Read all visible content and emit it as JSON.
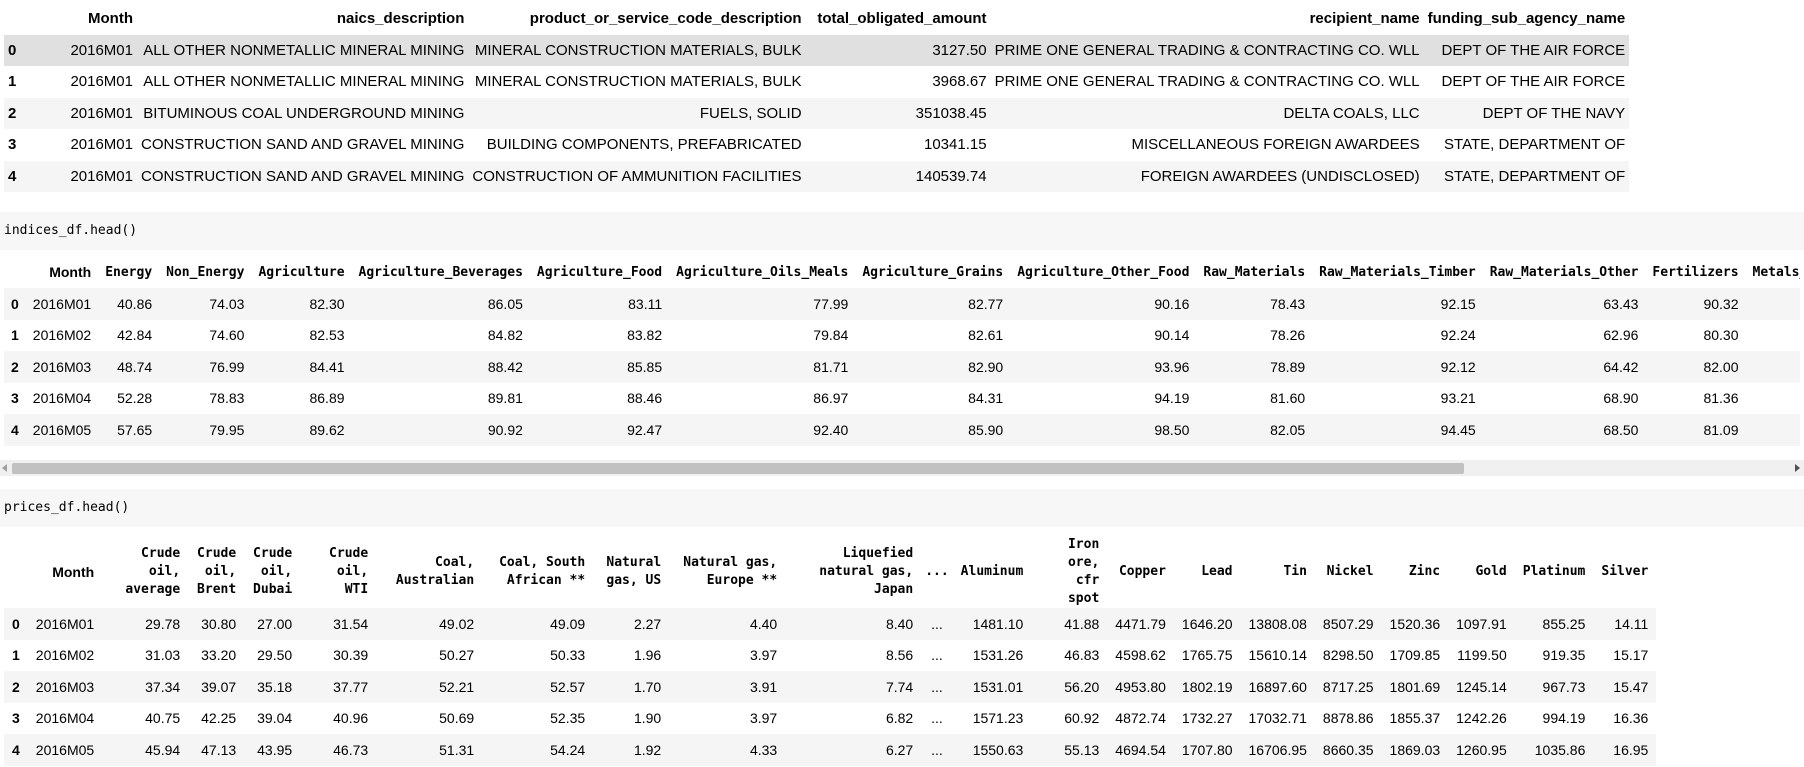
{
  "t1": {
    "columns": [
      "",
      "Month",
      "naics_description",
      "product_or_service_code_description",
      "total_obligated_amount",
      "recipient_name",
      "funding_sub_agency_name"
    ],
    "rows": [
      [
        "0",
        "2016M01",
        "ALL OTHER NONMETALLIC MINERAL MINING",
        "MINERAL CONSTRUCTION MATERIALS, BULK",
        "3127.50",
        "PRIME ONE GENERAL TRADING & CONTRACTING CO. WLL",
        "DEPT OF THE AIR FORCE"
      ],
      [
        "1",
        "2016M01",
        "ALL OTHER NONMETALLIC MINERAL MINING",
        "MINERAL CONSTRUCTION MATERIALS, BULK",
        "3968.67",
        "PRIME ONE GENERAL TRADING & CONTRACTING CO. WLL",
        "DEPT OF THE AIR FORCE"
      ],
      [
        "2",
        "2016M01",
        "BITUMINOUS COAL UNDERGROUND MINING",
        "FUELS, SOLID",
        "351038.45",
        "DELTA COALS, LLC",
        "DEPT OF THE NAVY"
      ],
      [
        "3",
        "2016M01",
        "CONSTRUCTION SAND AND GRAVEL MINING",
        "BUILDING COMPONENTS, PREFABRICATED",
        "10341.15",
        "MISCELLANEOUS FOREIGN AWARDEES",
        "STATE, DEPARTMENT OF"
      ],
      [
        "4",
        "2016M01",
        "CONSTRUCTION SAND AND GRAVEL MINING",
        "CONSTRUCTION OF AMMUNITION FACILITIES",
        "140539.74",
        "FOREIGN AWARDEES (UNDISCLOSED)",
        "STATE, DEPARTMENT OF"
      ]
    ]
  },
  "code2": "indices_df.head()",
  "t2": {
    "columns": [
      "",
      "Month",
      "Energy",
      "Non_Energy",
      "Agriculture",
      "Agriculture_Beverages",
      "Agriculture_Food",
      "Agriculture_Oils_Meals",
      "Agriculture_Grains",
      "Agriculture_Other_Food",
      "Raw_Materials",
      "Raw_Materials_Timber",
      "Raw_Materials_Other",
      "Fertilizers",
      "Metals_Minerals"
    ],
    "rows": [
      [
        "0",
        "2016M01",
        "40.86",
        "74.03",
        "82.30",
        "86.05",
        "83.11",
        "77.99",
        "82.77",
        "90.16",
        "78.43",
        "92.15",
        "63.43",
        "90.32",
        ""
      ],
      [
        "1",
        "2016M02",
        "42.84",
        "74.60",
        "82.53",
        "84.82",
        "83.82",
        "79.84",
        "82.61",
        "90.14",
        "78.26",
        "92.24",
        "62.96",
        "80.30",
        ""
      ],
      [
        "2",
        "2016M03",
        "48.74",
        "76.99",
        "84.41",
        "88.42",
        "85.85",
        "81.71",
        "82.90",
        "93.96",
        "78.89",
        "92.12",
        "64.42",
        "82.00",
        ""
      ],
      [
        "3",
        "2016M04",
        "52.28",
        "78.83",
        "86.89",
        "89.81",
        "88.46",
        "86.97",
        "84.31",
        "94.19",
        "81.60",
        "93.21",
        "68.90",
        "81.36",
        ""
      ],
      [
        "4",
        "2016M05",
        "57.65",
        "79.95",
        "89.62",
        "90.92",
        "92.47",
        "92.40",
        "85.90",
        "98.50",
        "82.05",
        "94.45",
        "68.50",
        "81.09",
        ""
      ]
    ]
  },
  "code3": "prices_df.head()",
  "t3": {
    "columns": [
      "",
      "Month",
      "Crude oil, average",
      "Crude oil, Brent",
      "Crude oil, Dubai",
      "Crude oil, WTI",
      "Coal, Australian",
      "Coal, South African **",
      "Natural gas, US",
      "Natural gas, Europe **",
      "Liquefied natural gas, Japan",
      "...",
      "Aluminum",
      "Iron ore, cfr spot",
      "Copper",
      "Lead",
      "Tin",
      "Nickel",
      "Zinc",
      "Gold",
      "Platinum",
      "Silver"
    ],
    "rows": [
      [
        "0",
        "2016M01",
        "29.78",
        "30.80",
        "27.00",
        "31.54",
        "49.02",
        "49.09",
        "2.27",
        "4.40",
        "8.40",
        "...",
        "1481.10",
        "41.88",
        "4471.79",
        "1646.20",
        "13808.08",
        "8507.29",
        "1520.36",
        "1097.91",
        "855.25",
        "14.11"
      ],
      [
        "1",
        "2016M02",
        "31.03",
        "33.20",
        "29.50",
        "30.39",
        "50.27",
        "50.33",
        "1.96",
        "3.97",
        "8.56",
        "...",
        "1531.26",
        "46.83",
        "4598.62",
        "1765.75",
        "15610.14",
        "8298.50",
        "1709.85",
        "1199.50",
        "919.35",
        "15.17"
      ],
      [
        "2",
        "2016M03",
        "37.34",
        "39.07",
        "35.18",
        "37.77",
        "52.21",
        "52.57",
        "1.70",
        "3.91",
        "7.74",
        "...",
        "1531.01",
        "56.20",
        "4953.80",
        "1802.19",
        "16897.60",
        "8717.25",
        "1801.69",
        "1245.14",
        "967.73",
        "15.47"
      ],
      [
        "3",
        "2016M04",
        "40.75",
        "42.25",
        "39.04",
        "40.96",
        "50.69",
        "52.35",
        "1.90",
        "3.97",
        "6.82",
        "...",
        "1571.23",
        "60.92",
        "4872.74",
        "1732.27",
        "17032.71",
        "8878.86",
        "1855.37",
        "1242.26",
        "994.19",
        "16.36"
      ],
      [
        "4",
        "2016M05",
        "45.94",
        "47.13",
        "43.95",
        "46.73",
        "51.31",
        "54.24",
        "1.92",
        "4.33",
        "6.27",
        "...",
        "1550.63",
        "55.13",
        "4694.54",
        "1707.80",
        "16706.95",
        "8660.35",
        "1869.03",
        "1260.95",
        "1035.86",
        "16.95"
      ]
    ]
  },
  "colors": {
    "row_alt": "#f5f5f5",
    "row_selected": "#e0e0e0",
    "code_bg": "#f7f7f7",
    "scroll_thumb": "#c1c1c1"
  }
}
